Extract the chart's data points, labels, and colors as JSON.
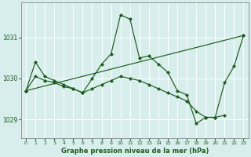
{
  "title": "Graphe pression niveau de la mer (hPa)",
  "background_color": "#d8eeed",
  "grid_color": "#b8d8d8",
  "line_color": "#1a5c1a",
  "xlim": [
    -0.5,
    23.5
  ],
  "ylim": [
    1028.55,
    1031.85
  ],
  "yticks": [
    1029,
    1030,
    1031
  ],
  "xticks": [
    0,
    1,
    2,
    3,
    4,
    5,
    6,
    7,
    8,
    9,
    10,
    11,
    12,
    13,
    14,
    15,
    16,
    17,
    18,
    19,
    20,
    21,
    22,
    23
  ],
  "series": [
    {
      "x": [
        0,
        1,
        2,
        3,
        4,
        5,
        6,
        7,
        8,
        9,
        10,
        11,
        12,
        13,
        14,
        15,
        16,
        17,
        18,
        19,
        20,
        21,
        22,
        23
      ],
      "y": [
        1029.7,
        1030.4,
        1030.05,
        1029.95,
        1029.85,
        1029.75,
        1029.65,
        1030.0,
        1030.35,
        1030.6,
        1031.55,
        1031.45,
        1030.5,
        1030.55,
        1030.35,
        1030.15,
        1029.7,
        1029.6,
        1028.9,
        1029.05,
        1029.05,
        1029.9,
        1030.3,
        1031.05
      ]
    },
    {
      "x": [
        0,
        23
      ],
      "y": [
        1029.7,
        1031.05
      ]
    },
    {
      "x": [
        0,
        1,
        2,
        3,
        4,
        5,
        6,
        7,
        8,
        9,
        10,
        11,
        12,
        13,
        14,
        15,
        16,
        17,
        18,
        19,
        20,
        21
      ],
      "y": [
        1029.7,
        1030.05,
        1029.95,
        1029.9,
        1029.8,
        1029.75,
        1029.65,
        1029.75,
        1029.85,
        1029.95,
        1030.05,
        1030.0,
        1029.95,
        1029.85,
        1029.75,
        1029.65,
        1029.55,
        1029.45,
        1029.2,
        1029.05,
        1029.05,
        1029.1
      ]
    }
  ]
}
